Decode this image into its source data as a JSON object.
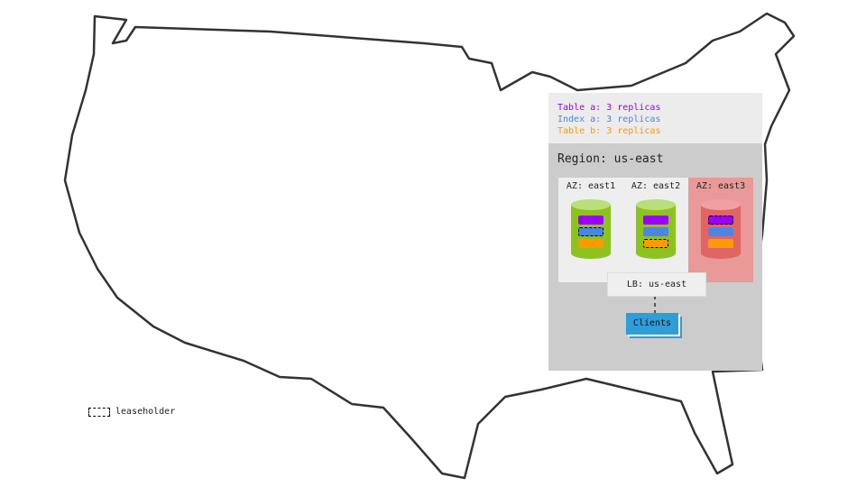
{
  "legend": {
    "lines": [
      {
        "text": "Table a: 3 replicas",
        "color": "#9b00ff"
      },
      {
        "text": "Index a: 3 replicas",
        "color": "#4a86e8"
      },
      {
        "text": "Table b: 3 replicas",
        "color": "#ff9900"
      }
    ]
  },
  "region": {
    "title": "Region: us-east",
    "azs": [
      {
        "label": "AZ: east1",
        "status": "up",
        "leaseholder": "Index a"
      },
      {
        "label": "AZ: east2",
        "status": "up",
        "leaseholder": "Table b"
      },
      {
        "label": "AZ: east3",
        "status": "down",
        "leaseholder": "Table a"
      }
    ],
    "lb": "LB: us-east",
    "clients": "Clients"
  },
  "key": {
    "leaseholder": "leaseholder"
  },
  "colors": {
    "up": "#8dc21f",
    "down": "#e06666",
    "table_a": "#9b00ff",
    "index_a": "#4a86e8",
    "table_b": "#ff9900"
  }
}
